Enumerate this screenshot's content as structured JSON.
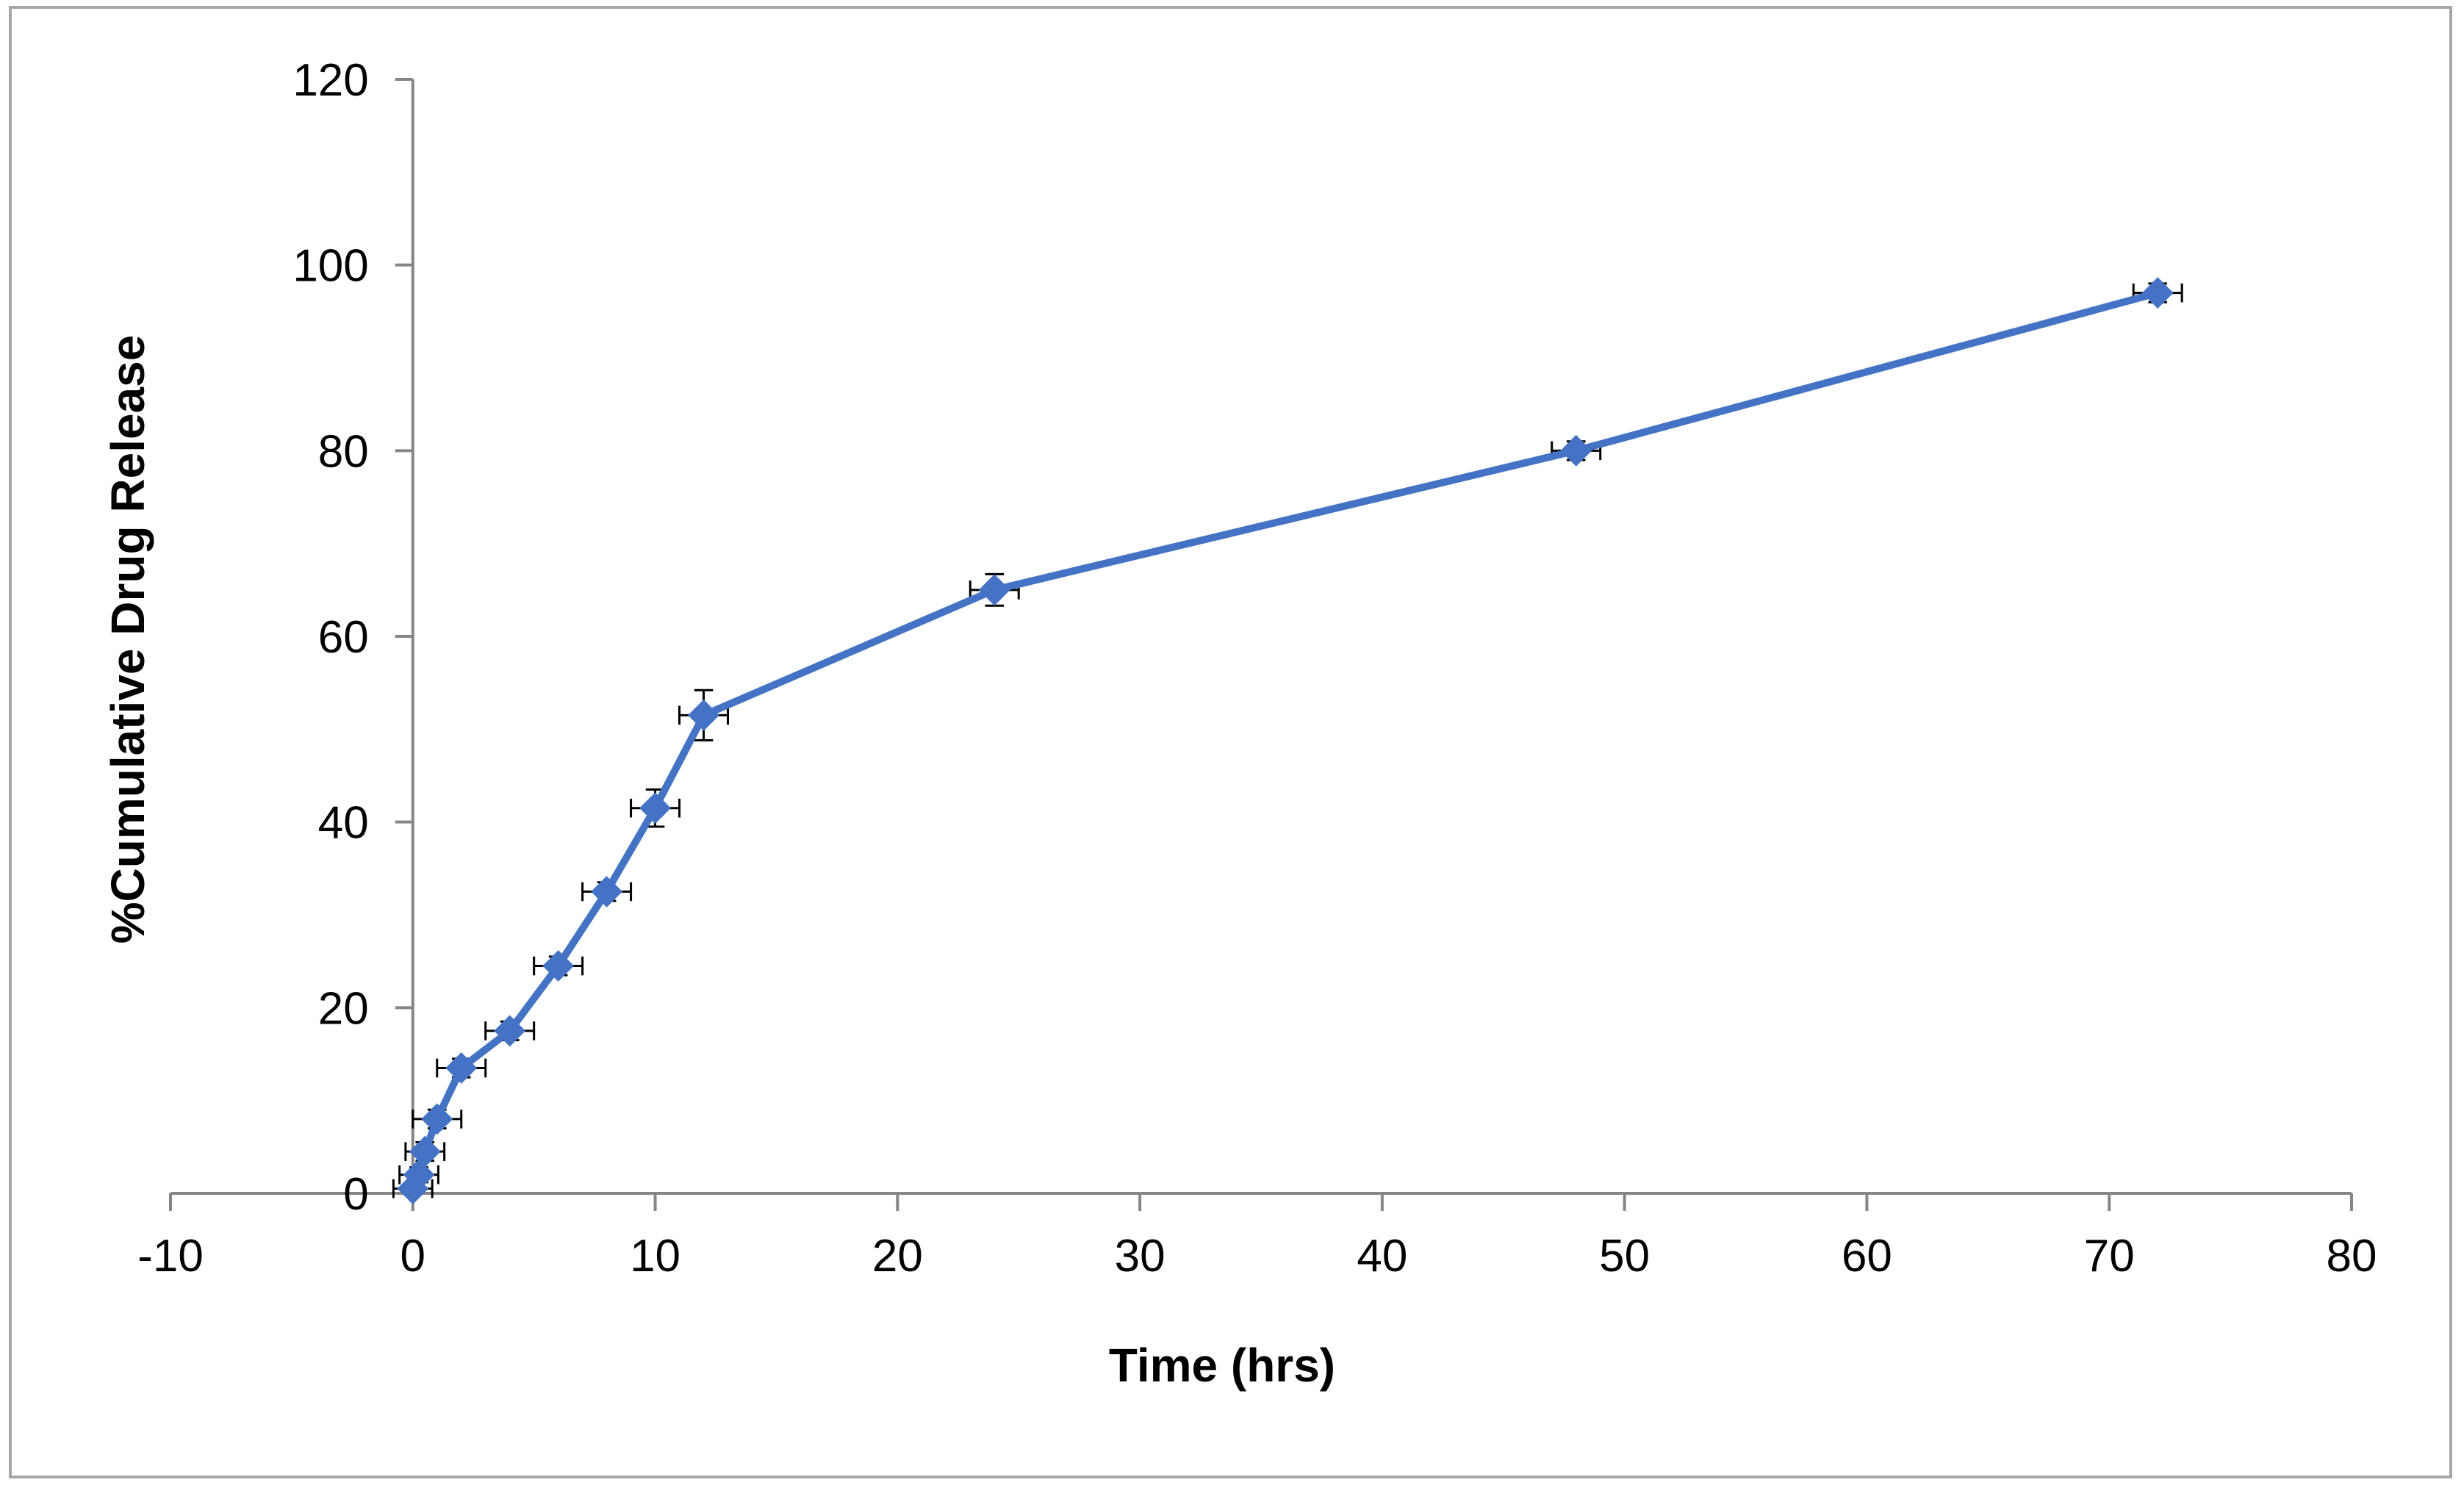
{
  "chart_data": {
    "type": "scatter",
    "xlabel": "Time (hrs)",
    "ylabel": "%Cumulative Drug Release",
    "xlim": [
      -10,
      80
    ],
    "ylim": [
      0,
      120
    ],
    "xticks": [
      -10,
      0,
      10,
      20,
      30,
      40,
      50,
      60,
      70,
      80
    ],
    "yticks": [
      0,
      20,
      40,
      60,
      80,
      100,
      120
    ],
    "grid": false,
    "legend": "none",
    "series": [
      {
        "color": "#4472c4",
        "marker": "diamond",
        "lines": true,
        "points": [
          {
            "x": 0,
            "y": 0.5,
            "xerr": 0.8,
            "yerr": 0.5
          },
          {
            "x": 0.25,
            "y": 2,
            "xerr": 0.8,
            "yerr": 0.8
          },
          {
            "x": 0.5,
            "y": 4.5,
            "xerr": 0.8,
            "yerr": 1
          },
          {
            "x": 1,
            "y": 8,
            "xerr": 1,
            "yerr": 1
          },
          {
            "x": 2,
            "y": 13.5,
            "xerr": 1,
            "yerr": 1
          },
          {
            "x": 4,
            "y": 17.5,
            "xerr": 1,
            "yerr": 1
          },
          {
            "x": 6,
            "y": 24.5,
            "xerr": 1,
            "yerr": 1
          },
          {
            "x": 8,
            "y": 32.5,
            "xerr": 1,
            "yerr": 1
          },
          {
            "x": 10,
            "y": 41.5,
            "xerr": 1,
            "yerr": 2
          },
          {
            "x": 12,
            "y": 51.5,
            "xerr": 1,
            "yerr": 2.7
          },
          {
            "x": 24,
            "y": 65,
            "xerr": 1,
            "yerr": 1.7
          },
          {
            "x": 48,
            "y": 80,
            "xerr": 1,
            "yerr": 1
          },
          {
            "x": 72,
            "y": 97,
            "xerr": 1,
            "yerr": 1
          }
        ]
      }
    ]
  }
}
